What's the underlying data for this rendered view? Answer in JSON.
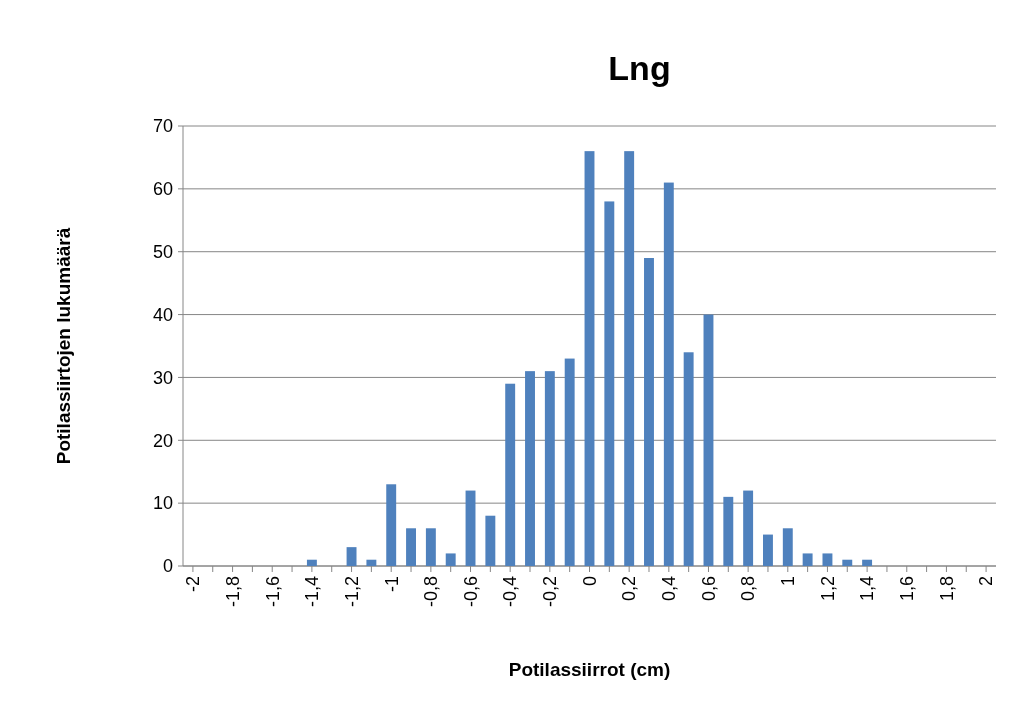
{
  "chart_data": {
    "type": "bar",
    "title": "Lng",
    "xlabel": "Potilassiirrot (cm)",
    "ylabel": "Potilassiirtojen lukumäärä",
    "categories": [
      "-2",
      null,
      "-1,8",
      null,
      "-1,6",
      null,
      "-1,4",
      null,
      "-1,2",
      null,
      "-1",
      null,
      "-0,8",
      null,
      "-0,6",
      null,
      "-0,4",
      null,
      "-0,2",
      null,
      "0",
      null,
      "0,2",
      null,
      "0,4",
      null,
      "0,6",
      null,
      "0,8",
      null,
      "1",
      null,
      "1,2",
      null,
      "1,4",
      null,
      "1,6",
      null,
      "1,8",
      null,
      "2"
    ],
    "values": [
      0,
      0,
      0,
      0,
      0,
      0,
      1,
      0,
      3,
      1,
      13,
      6,
      6,
      2,
      12,
      8,
      29,
      31,
      31,
      33,
      66,
      58,
      66,
      49,
      61,
      34,
      40,
      11,
      12,
      5,
      6,
      2,
      2,
      1,
      1,
      0,
      0,
      0,
      0,
      0,
      0
    ],
    "color": "#4f81bd",
    "ylim": [
      0,
      70
    ],
    "yticks": [
      0,
      10,
      20,
      30,
      40,
      50,
      60,
      70
    ],
    "grid": "y"
  }
}
